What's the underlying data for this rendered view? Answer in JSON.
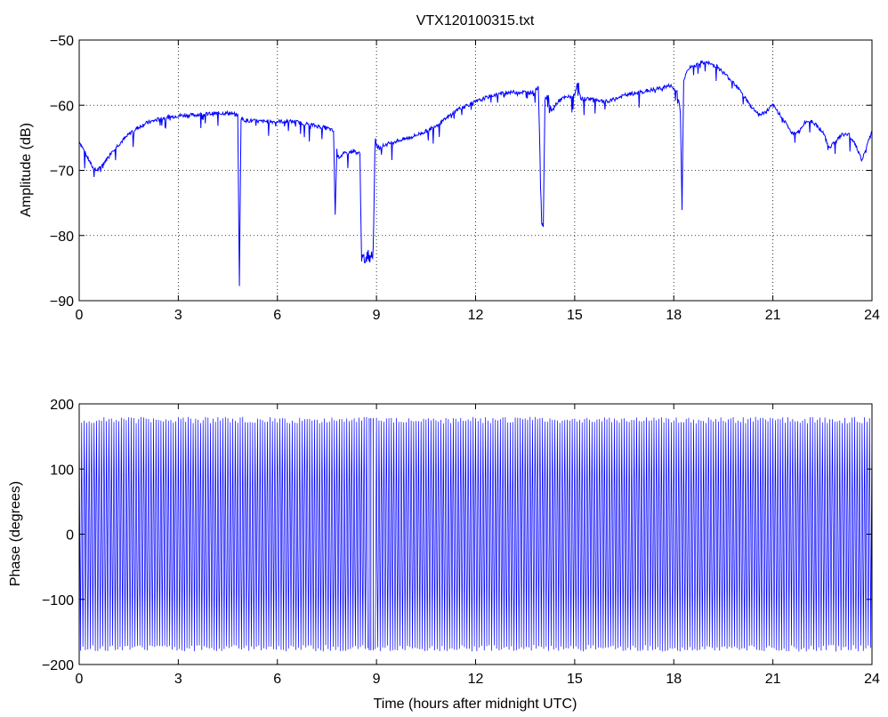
{
  "figure": {
    "title": "VTX120100315.txt",
    "line_color": "#0000ff",
    "background": "#ffffff"
  },
  "chart_data": [
    {
      "type": "line",
      "title": "VTX120100315.txt",
      "xlabel": "",
      "ylabel": "Amplitude (dB)",
      "xlim": [
        0,
        24
      ],
      "ylim": [
        -90,
        -50
      ],
      "xticks": [
        0,
        3,
        6,
        9,
        12,
        15,
        18,
        21,
        24
      ],
      "yticks": [
        -90,
        -80,
        -70,
        -60,
        -50
      ],
      "xtick_labels": [
        "0",
        "3",
        "6",
        "9",
        "12",
        "15",
        "18",
        "21",
        "24"
      ],
      "ytick_labels": [
        "−90",
        "−80",
        "−70",
        "−60",
        "−50"
      ],
      "grid": true,
      "grid_style": "dotted",
      "series": [
        {
          "color": "#0000ff",
          "x": [
            0.0,
            0.2,
            0.4,
            0.5,
            0.6,
            0.8,
            1.0,
            1.3,
            1.6,
            2.0,
            2.5,
            3.0,
            3.5,
            4.0,
            4.5,
            4.8,
            4.85,
            4.9,
            5.0,
            5.5,
            6.0,
            6.5,
            7.0,
            7.5,
            7.7,
            7.75,
            7.8,
            7.85,
            8.0,
            8.3,
            8.5,
            8.55,
            8.6,
            8.65,
            8.9,
            8.95,
            9.0,
            9.05,
            9.1,
            9.3,
            9.6,
            10.0,
            10.5,
            11.0,
            11.5,
            12.0,
            12.5,
            13.0,
            13.5,
            13.8,
            13.9,
            14.0,
            14.05,
            14.1,
            14.2,
            14.25,
            14.3,
            14.4,
            14.6,
            15.0,
            15.1,
            15.15,
            15.2,
            15.5,
            16.0,
            16.5,
            17.0,
            17.5,
            17.9,
            18.1,
            18.2,
            18.25,
            18.3,
            18.35,
            18.4,
            18.6,
            18.8,
            19.0,
            19.3,
            19.6,
            20.0,
            20.3,
            20.6,
            20.8,
            21.0,
            21.3,
            21.6,
            21.8,
            22.0,
            22.2,
            22.5,
            22.7,
            22.9,
            23.1,
            23.3,
            23.5,
            23.7,
            23.9,
            24.0
          ],
          "y": [
            -65.5,
            -67.5,
            -69.5,
            -70.0,
            -69.8,
            -68.5,
            -67.0,
            -65.5,
            -64.0,
            -62.8,
            -62.0,
            -61.6,
            -61.5,
            -61.3,
            -61.2,
            -61.5,
            -87.5,
            -62.0,
            -62.3,
            -62.5,
            -62.5,
            -62.5,
            -63.0,
            -63.5,
            -64.0,
            -77.0,
            -66.5,
            -68.0,
            -67.5,
            -67.0,
            -67.5,
            -83.5,
            -84.0,
            -83.5,
            -82.5,
            -66.5,
            -66.0,
            -66.5,
            -66.5,
            -66.0,
            -65.5,
            -65.0,
            -64.0,
            -62.5,
            -60.5,
            -59.5,
            -58.5,
            -58.0,
            -58.0,
            -58.0,
            -57.0,
            -78.0,
            -78.5,
            -59.0,
            -58.5,
            -60.0,
            -61.0,
            -60.0,
            -59.0,
            -58.5,
            -56.0,
            -58.5,
            -59.0,
            -59.0,
            -59.5,
            -58.5,
            -58.0,
            -57.5,
            -57.0,
            -58.0,
            -61.0,
            -76.0,
            -56.0,
            -55.5,
            -54.5,
            -54.0,
            -53.5,
            -53.5,
            -54.0,
            -55.5,
            -57.5,
            -60.0,
            -61.5,
            -61.0,
            -60.0,
            -62.0,
            -64.5,
            -64.0,
            -62.5,
            -62.5,
            -64.0,
            -66.5,
            -65.5,
            -64.5,
            -64.5,
            -66.0,
            -68.5,
            -65.5,
            -64.0
          ]
        }
      ]
    },
    {
      "type": "line",
      "title": "",
      "xlabel": "Time (hours after midnight UTC)",
      "ylabel": "Phase (degrees)",
      "xlim": [
        0,
        24
      ],
      "ylim": [
        -200,
        200
      ],
      "xticks": [
        0,
        3,
        6,
        9,
        12,
        15,
        18,
        21,
        24
      ],
      "yticks": [
        -200,
        -100,
        0,
        100,
        200
      ],
      "xtick_labels": [
        "0",
        "3",
        "6",
        "9",
        "12",
        "15",
        "18",
        "21",
        "24"
      ],
      "ytick_labels": [
        "−200",
        "−100",
        "0",
        "100",
        "200"
      ],
      "grid": false,
      "series": [
        {
          "color": "#0000ff",
          "wrapped_phase_range": [
            -180,
            180
          ],
          "approx_cycles": 320,
          "gap_x": [
            8.75,
            8.95
          ]
        }
      ]
    }
  ]
}
